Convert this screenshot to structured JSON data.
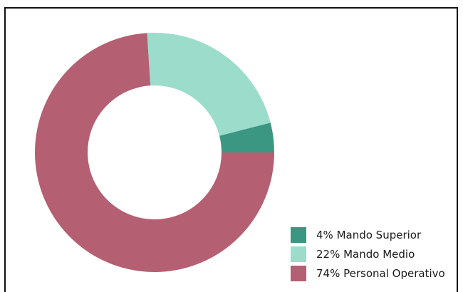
{
  "chart_data": {
    "type": "pie",
    "variant": "donut",
    "categories": [
      "Mando Superior",
      "Mando Medio",
      "Personal Operativo"
    ],
    "values": [
      4,
      22,
      74
    ],
    "unit": "%",
    "colors": [
      "#3b9682",
      "#9bdcca",
      "#b55f72"
    ],
    "legend_position": "bottom-right",
    "legend": [
      {
        "label": "4% Mando Superior",
        "color": "#3b9682"
      },
      {
        "label": "22% Mando Medio",
        "color": "#9bdcca"
      },
      {
        "label": "74% Personal Operativo",
        "color": "#b55f72"
      }
    ]
  }
}
